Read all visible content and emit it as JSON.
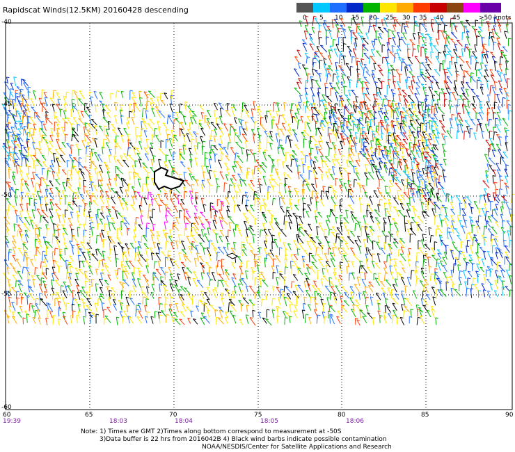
{
  "title": "Rapidscat Winds(12.5KM) 20160428 descending",
  "legend": {
    "labels": [
      "0",
      "5",
      "10",
      "15",
      "20",
      "25",
      "30",
      "35",
      "40",
      "45",
      ">50 knots"
    ],
    "colors": [
      "#555555",
      "#00c8ff",
      "#1e6eff",
      "#0028c8",
      "#00b400",
      "#ffe600",
      "#ffaa00",
      "#ff3c00",
      "#c80000",
      "#8b4513",
      "#ff00ff",
      "#6a00a8"
    ]
  },
  "axes": {
    "lon_labels": [
      "60",
      "65",
      "70",
      "75",
      "80",
      "85",
      "90"
    ],
    "lat_labels": [
      "-40",
      "-45",
      "-50",
      "-55",
      "-60"
    ]
  },
  "times": [
    "19:39",
    "18:03",
    "18:04",
    "18:05",
    "18:06"
  ],
  "notes": {
    "line1": "Note: 1) Times are GMT 2)Times along bottom correspond to measurement at -50S",
    "line2": "3)Data buffer is 22 hrs from 2016042B 4) Black wind barbs indicate possible contamination",
    "line3": "NOAA/NESDIS/Center for Satellite Applications and Research"
  },
  "map_features": [
    "wind-barb-swath",
    "kerguelen-island",
    "heard-island"
  ],
  "swath_colors": [
    "#ffe600",
    "#ffaa00",
    "#00b400",
    "#1e6eff",
    "#ff3c00",
    "#000000",
    "#00c8ff",
    "#ff00ff"
  ]
}
